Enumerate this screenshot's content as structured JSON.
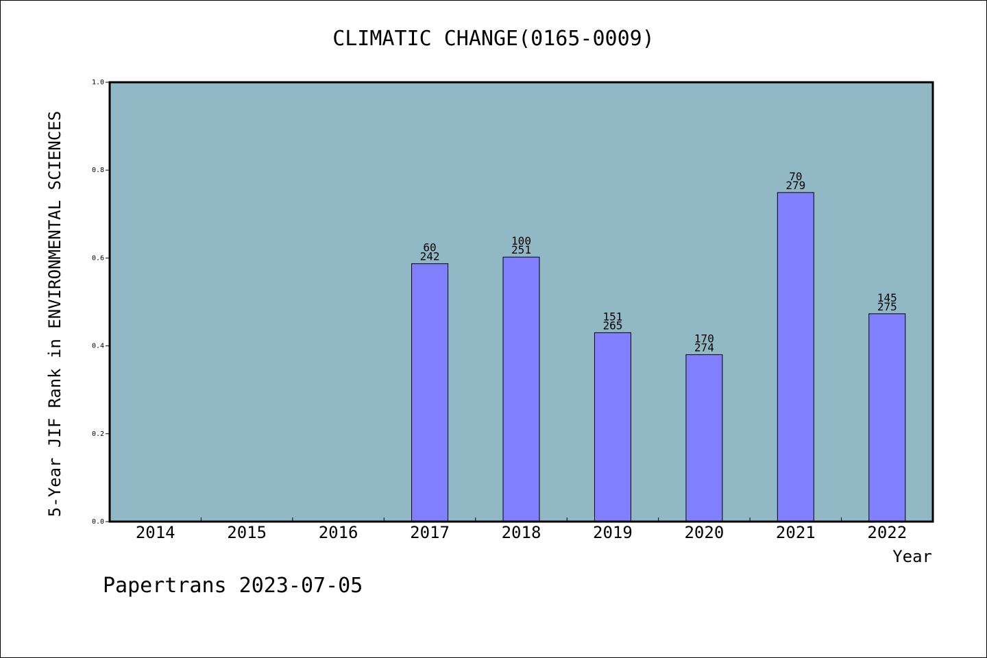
{
  "chart_data": {
    "type": "bar",
    "title": "CLIMATIC CHANGE(0165-0009)",
    "xlabel": "Year",
    "ylabel": "5-Year JIF Rank in ENVIRONMENTAL SCIENCES",
    "ylim": [
      0,
      1.0
    ],
    "yticks": [
      "0.0",
      "0.2",
      "0.4",
      "0.6",
      "0.8",
      "1.0"
    ],
    "categories": [
      "2014",
      "2015",
      "2016",
      "2017",
      "2018",
      "2019",
      "2020",
      "2021",
      "2022"
    ],
    "values": [
      null,
      null,
      null,
      0.587,
      0.602,
      0.43,
      0.38,
      0.749,
      0.473
    ],
    "rank": [
      null,
      null,
      null,
      "60",
      "100",
      "151",
      "170",
      "70",
      "145"
    ],
    "total": [
      null,
      null,
      null,
      "242",
      "251",
      "265",
      "274",
      "279",
      "275"
    ],
    "grid": false,
    "colors": {
      "plot_bg": "#91b8c5",
      "bar": "#8080ff",
      "axis": "#000000"
    }
  },
  "footer": "Papertrans 2023-07-05"
}
